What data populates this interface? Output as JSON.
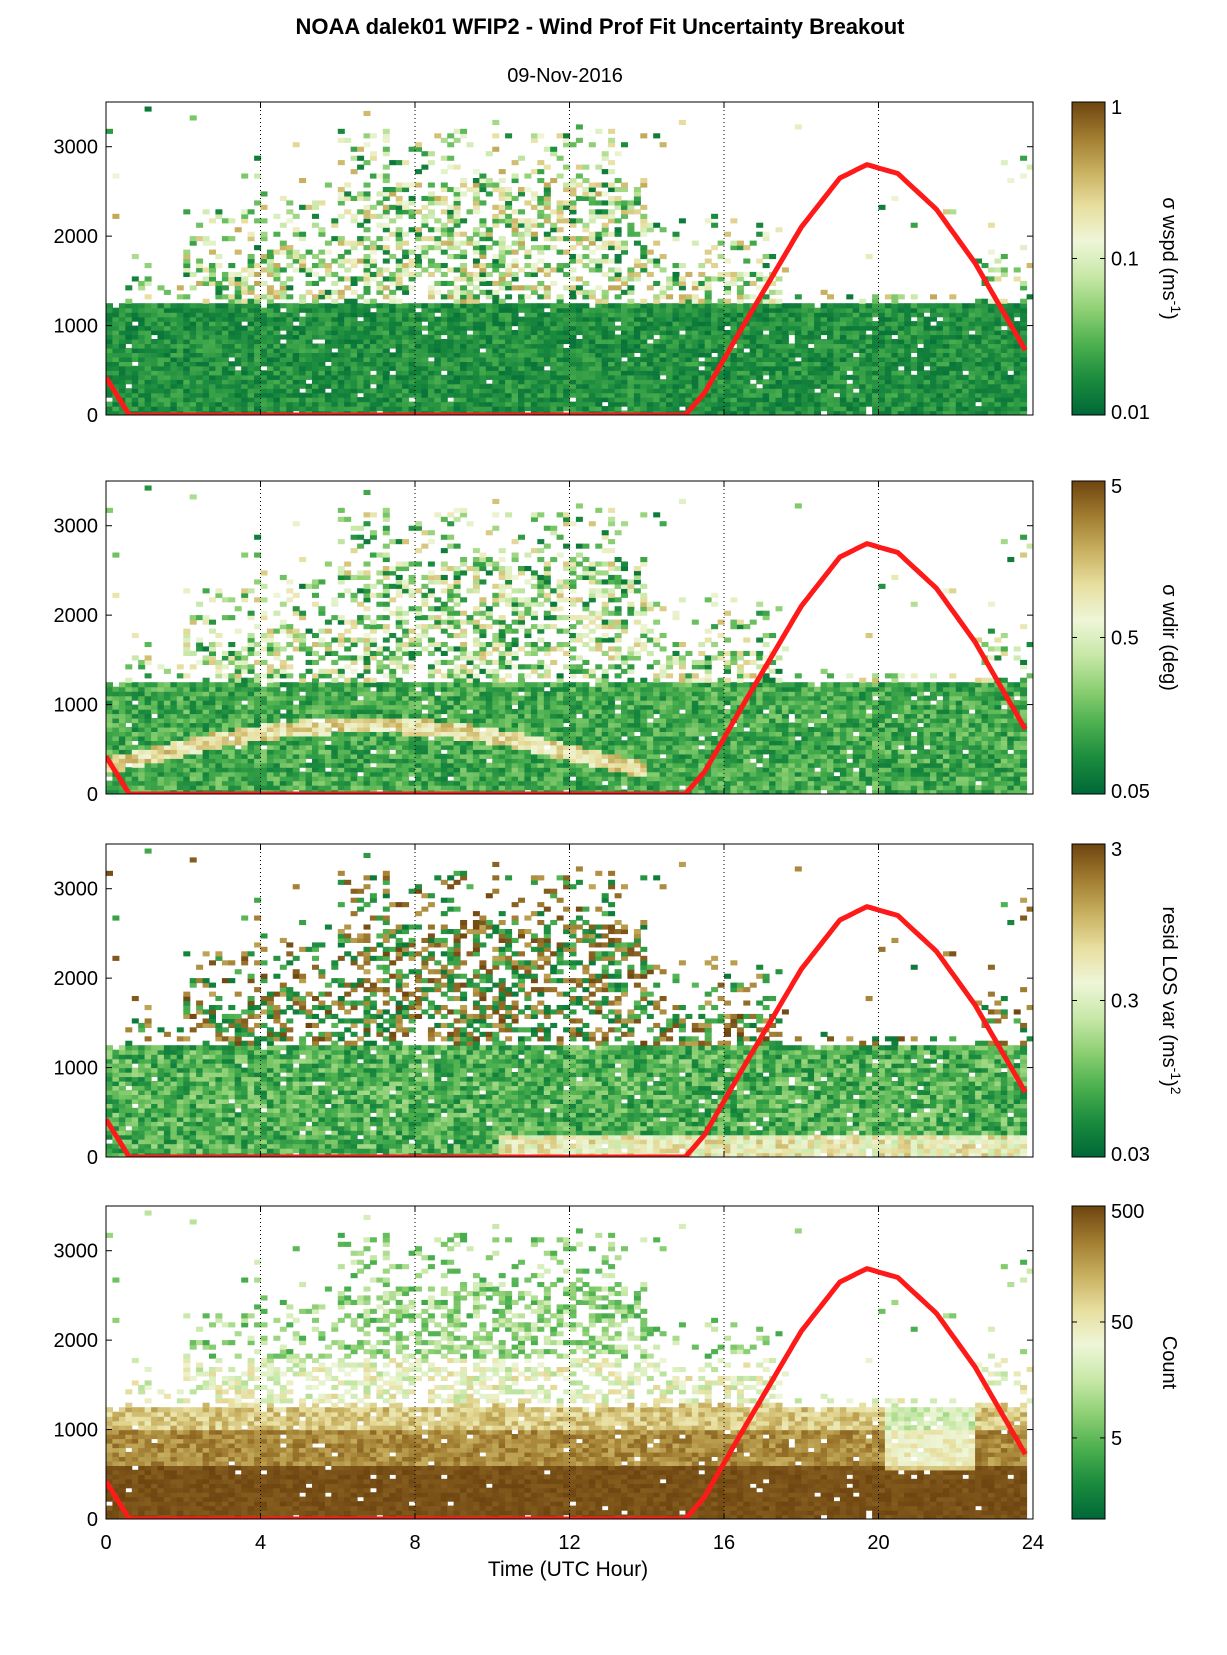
{
  "title": "NOAA dalek01 WFIP2 - Wind Prof Fit Uncertainty Breakout",
  "subtitle": "09-Nov-2016",
  "chart_data": {
    "type": "heatmap",
    "xlabel": "Time (UTC Hour)",
    "xlim": [
      0,
      24
    ],
    "xticks": [
      "0",
      "4",
      "8",
      "12",
      "16",
      "20",
      "24"
    ],
    "ylim": [
      0,
      3500
    ],
    "yticks": [
      "0",
      "1000",
      "2000",
      "3000"
    ],
    "grid": "vertical dotted lines at x ticks",
    "overlay": {
      "color": "#ff1a1a",
      "description_points_hours_height": [
        [
          0,
          420
        ],
        [
          0.6,
          0
        ],
        [
          15.0,
          0
        ],
        [
          15.5,
          250
        ],
        [
          16.5,
          1000
        ],
        [
          18.0,
          2100
        ],
        [
          19.0,
          2650
        ],
        [
          19.7,
          2800
        ],
        [
          20.5,
          2700
        ],
        [
          21.5,
          2300
        ],
        [
          22.5,
          1700
        ],
        [
          23.3,
          1100
        ],
        [
          23.9,
          650
        ]
      ]
    },
    "panels": [
      {
        "id": "wspd",
        "colorbar_label": "σ wspd (ms",
        "colorbar_label_sup": "-1",
        "colorbar_label_end": ")",
        "scale": "log",
        "cticks": [
          "1",
          "0.1",
          "0.01"
        ],
        "crange": [
          0.01,
          1
        ],
        "low_level_mean": 0.02
      },
      {
        "id": "wdir",
        "colorbar_label": "σ wdir (deg)",
        "colorbar_label_sup": "",
        "colorbar_label_end": "",
        "scale": "log",
        "cticks": [
          "5",
          "0.5",
          "0.05"
        ],
        "crange": [
          0.05,
          5
        ],
        "low_level_mean": 0.15
      },
      {
        "id": "resid",
        "colorbar_label": "resid LOS var (ms",
        "colorbar_label_sup": "-1",
        "colorbar_label_end": ")",
        "colorbar_label_sup2": "2",
        "scale": "log",
        "cticks": [
          "3",
          "0.3",
          "0.03"
        ],
        "crange": [
          0.03,
          3
        ],
        "low_level_mean": 0.1
      },
      {
        "id": "count",
        "colorbar_label": "Count",
        "colorbar_label_sup": "",
        "colorbar_label_end": "",
        "scale": "log",
        "cticks": [
          "500",
          "50",
          "5"
        ],
        "crange": [
          1,
          500
        ],
        "low_level_mean": 500
      }
    ],
    "colormap": [
      "#006837",
      "#1a8a3e",
      "#4aaf4e",
      "#8ccf72",
      "#c8e8a8",
      "#eef6d8",
      "#e8dfa0",
      "#c8b060",
      "#a07c30",
      "#6e4410"
    ]
  }
}
